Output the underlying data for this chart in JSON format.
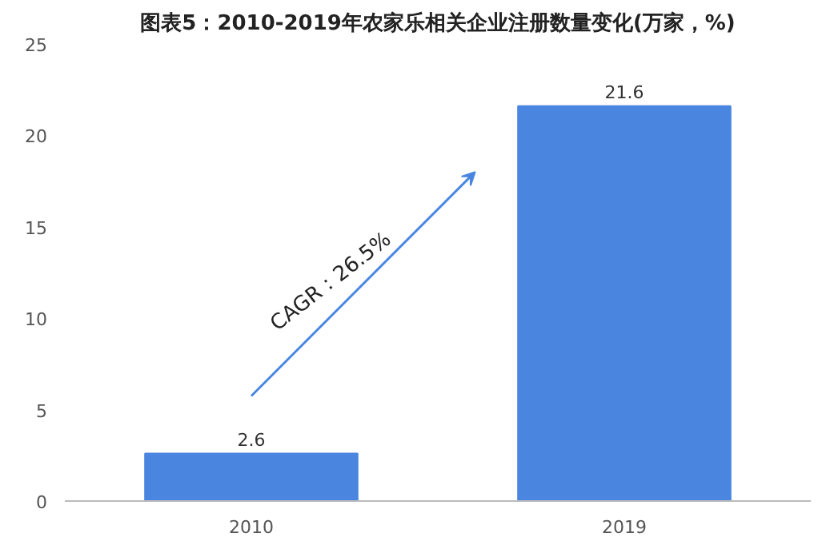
{
  "chart_data": {
    "type": "bar",
    "title": "图表5：2010-2019年农家乐相关企业注册数量变化(万家，%)",
    "categories": [
      "2010",
      "2019"
    ],
    "values": [
      2.6,
      21.6
    ],
    "color": "#4a86e0",
    "ylim": [
      0,
      25
    ],
    "yticks": [
      0,
      5,
      10,
      15,
      20,
      25
    ],
    "grid": false,
    "data_labels": true,
    "annotations": [
      "CAGR：26.5%"
    ]
  }
}
